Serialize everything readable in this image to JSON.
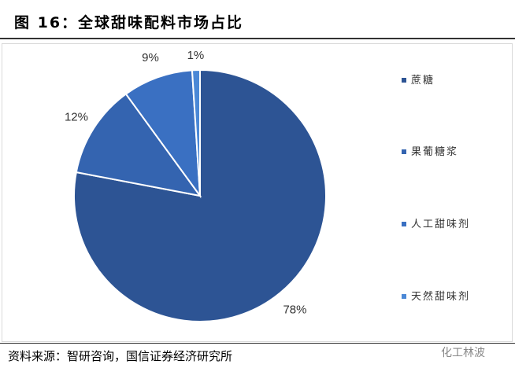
{
  "chart_data": {
    "type": "pie",
    "title": "图 16：全球甜味配料市场占比",
    "categories": [
      "蔗糖",
      "果葡糖浆",
      "人工甜味剂",
      "天然甜味剂"
    ],
    "values": [
      78,
      12,
      9,
      1
    ],
    "value_labels": [
      "78%",
      "12%",
      "9%",
      "1%"
    ],
    "colors": [
      "#2d5494",
      "#3464b0",
      "#3a70c2",
      "#4b88d6"
    ],
    "legend": "right",
    "source": "资料来源：智研咨询，国信证券经济研究所",
    "watermark": "化工林波"
  }
}
